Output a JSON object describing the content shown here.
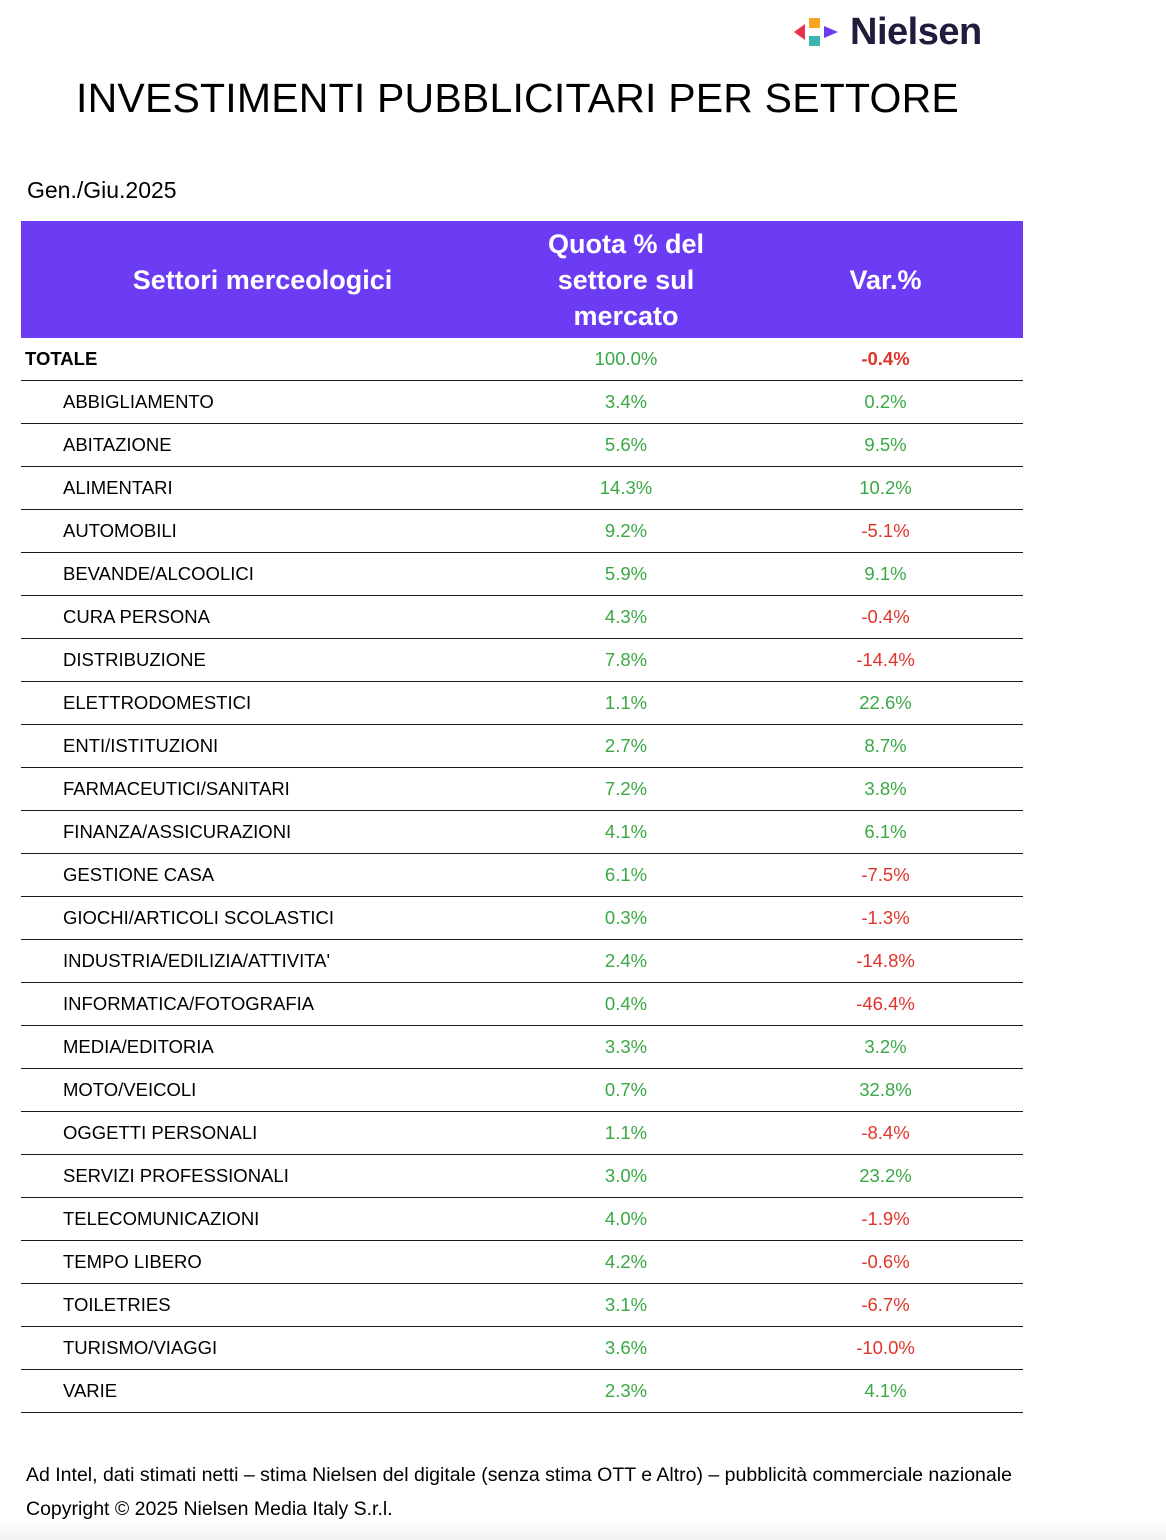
{
  "brand": {
    "name": "Nielsen",
    "logo_colors": [
      "#e8344d",
      "#f7a823",
      "#3cb5b0",
      "#6c3cf4"
    ]
  },
  "title": "INVESTIMENTI PUBBLICITARI PER SETTORE",
  "period": "Gen./Giu.2025",
  "table": {
    "header_color": "#6c3cf4",
    "positive_color": "#3aa845",
    "negative_color": "#e0352b",
    "columns": [
      "Settori merceologici",
      "Quota % del\nsettore sul\nmercato",
      "Var.%"
    ],
    "rows": [
      {
        "sector": "TOTALE",
        "share": "100.0%",
        "var": "-0.4%",
        "total": true
      },
      {
        "sector": "ABBIGLIAMENTO",
        "share": "3.4%",
        "var": "0.2%"
      },
      {
        "sector": "ABITAZIONE",
        "share": "5.6%",
        "var": "9.5%"
      },
      {
        "sector": "ALIMENTARI",
        "share": "14.3%",
        "var": "10.2%"
      },
      {
        "sector": "AUTOMOBILI",
        "share": "9.2%",
        "var": "-5.1%"
      },
      {
        "sector": "BEVANDE/ALCOOLICI",
        "share": "5.9%",
        "var": "9.1%"
      },
      {
        "sector": "CURA PERSONA",
        "share": "4.3%",
        "var": "-0.4%"
      },
      {
        "sector": "DISTRIBUZIONE",
        "share": "7.8%",
        "var": "-14.4%"
      },
      {
        "sector": "ELETTRODOMESTICI",
        "share": "1.1%",
        "var": "22.6%"
      },
      {
        "sector": "ENTI/ISTITUZIONI",
        "share": "2.7%",
        "var": "8.7%"
      },
      {
        "sector": "FARMACEUTICI/SANITARI",
        "share": "7.2%",
        "var": "3.8%"
      },
      {
        "sector": "FINANZA/ASSICURAZIONI",
        "share": "4.1%",
        "var": "6.1%"
      },
      {
        "sector": "GESTIONE CASA",
        "share": "6.1%",
        "var": "-7.5%"
      },
      {
        "sector": "GIOCHI/ARTICOLI SCOLASTICI",
        "share": "0.3%",
        "var": "-1.3%"
      },
      {
        "sector": "INDUSTRIA/EDILIZIA/ATTIVITA'",
        "share": "2.4%",
        "var": "-14.8%"
      },
      {
        "sector": "INFORMATICA/FOTOGRAFIA",
        "share": "0.4%",
        "var": "-46.4%"
      },
      {
        "sector": "MEDIA/EDITORIA",
        "share": "3.3%",
        "var": "3.2%"
      },
      {
        "sector": "MOTO/VEICOLI",
        "share": "0.7%",
        "var": "32.8%"
      },
      {
        "sector": "OGGETTI PERSONALI",
        "share": "1.1%",
        "var": "-8.4%"
      },
      {
        "sector": "SERVIZI PROFESSIONALI",
        "share": "3.0%",
        "var": "23.2%"
      },
      {
        "sector": "TELECOMUNICAZIONI",
        "share": "4.0%",
        "var": "-1.9%"
      },
      {
        "sector": "TEMPO LIBERO",
        "share": "4.2%",
        "var": "-0.6%"
      },
      {
        "sector": "TOILETRIES",
        "share": "3.1%",
        "var": "-6.7%"
      },
      {
        "sector": "TURISMO/VIAGGI",
        "share": "3.6%",
        "var": "-10.0%"
      },
      {
        "sector": "VARIE",
        "share": "2.3%",
        "var": "4.1%"
      }
    ]
  },
  "footnotes": {
    "source": "Ad Intel, dati stimati netti – stima Nielsen del digitale (senza stima OTT e Altro) – pubblicità commerciale nazionale",
    "copyright": "Copyright © 2025 Nielsen Media Italy S.r.l."
  }
}
